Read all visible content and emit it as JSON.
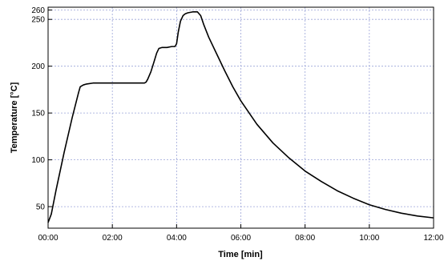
{
  "chart_data": {
    "type": "line",
    "title": "",
    "xlabel": "Time [min]",
    "ylabel": "Temperature [°C]",
    "xlim": [
      0,
      12
    ],
    "ylim": [
      27,
      263
    ],
    "grid": true,
    "x_ticks": [
      {
        "value": 0,
        "label": "00:00"
      },
      {
        "value": 2,
        "label": "02:00"
      },
      {
        "value": 4,
        "label": "04:00"
      },
      {
        "value": 6,
        "label": "06:00"
      },
      {
        "value": 8,
        "label": "08:00"
      },
      {
        "value": 10,
        "label": "10:00"
      },
      {
        "value": 12,
        "label": "12:00"
      }
    ],
    "y_ticks": [
      {
        "value": 50,
        "label": "50"
      },
      {
        "value": 100,
        "label": "100"
      },
      {
        "value": 150,
        "label": "150"
      },
      {
        "value": 200,
        "label": "200"
      },
      {
        "value": 250,
        "label": "250"
      },
      {
        "value": 260,
        "label": "260"
      }
    ],
    "series": [
      {
        "color": "#000000",
        "x": [
          0,
          0.1,
          0.25,
          0.5,
          0.75,
          0.95,
          1.0,
          1.05,
          1.1,
          1.2,
          1.4,
          1.8,
          2.2,
          2.6,
          3.0,
          3.05,
          3.1,
          3.2,
          3.3,
          3.38,
          3.45,
          3.55,
          3.7,
          3.85,
          3.95,
          4.0,
          4.05,
          4.12,
          4.2,
          4.27,
          4.35,
          4.5,
          4.65,
          4.75,
          4.85,
          5.0,
          5.25,
          5.5,
          5.75,
          6.0,
          6.5,
          7.0,
          7.5,
          8.0,
          8.5,
          9.0,
          9.5,
          10.0,
          10.5,
          11.0,
          11.5,
          12.0
        ],
        "y": [
          33,
          42,
          68,
          108,
          145,
          172,
          178,
          179,
          180,
          181,
          182,
          182,
          182,
          182,
          182,
          183,
          186,
          194,
          205,
          214,
          219,
          220,
          220,
          221,
          221,
          224,
          236,
          248,
          254,
          256,
          257,
          258,
          258,
          254,
          244,
          231,
          213,
          195,
          178,
          163,
          138,
          118,
          102,
          88,
          77,
          67,
          59,
          52,
          47,
          43,
          40,
          38
        ]
      }
    ]
  }
}
